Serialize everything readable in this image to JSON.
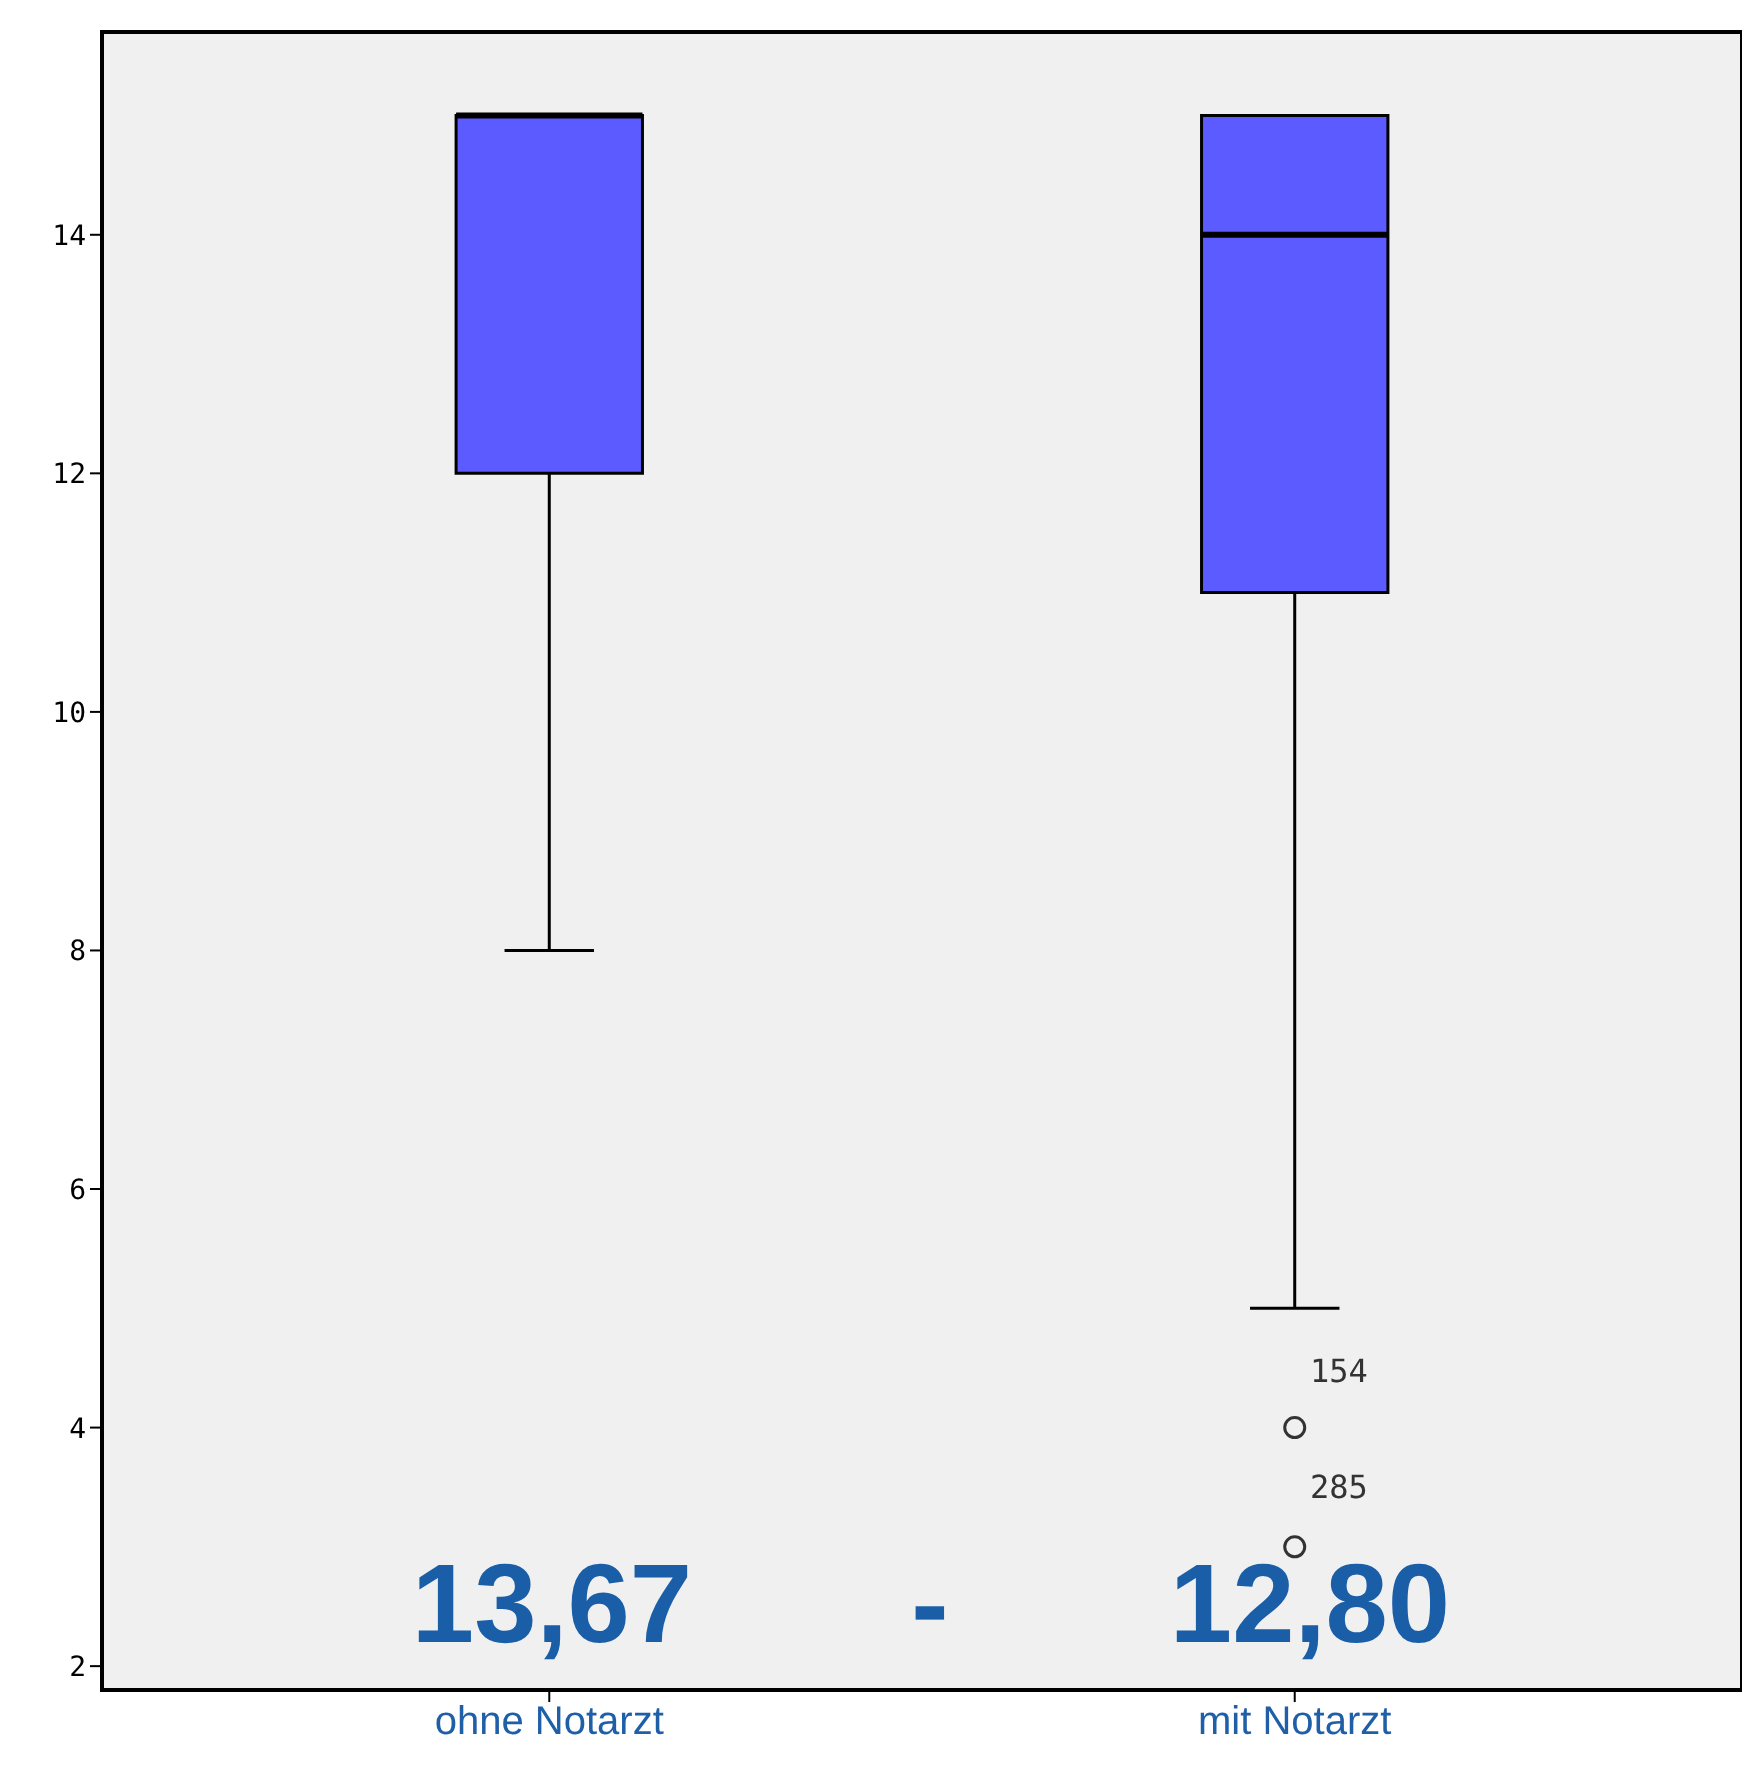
{
  "chart_data": {
    "type": "box",
    "categories": [
      "ohne Notarzt",
      "mit Notarzt"
    ],
    "color": "#5b5bff",
    "boxes": [
      {
        "low": 8,
        "q1": 12,
        "median": 15,
        "q3": 15,
        "high": 15
      },
      {
        "low": 5,
        "q1": 11,
        "median": 14,
        "q3": 15,
        "high": 15,
        "outliers": [
          4,
          3
        ]
      }
    ],
    "ylim": [
      1.8,
      15.7
    ],
    "yticks": [
      2,
      4,
      6,
      8,
      10,
      12,
      14
    ],
    "annotations": [
      "13,67",
      "-",
      "12,80",
      "154",
      "285"
    ]
  }
}
